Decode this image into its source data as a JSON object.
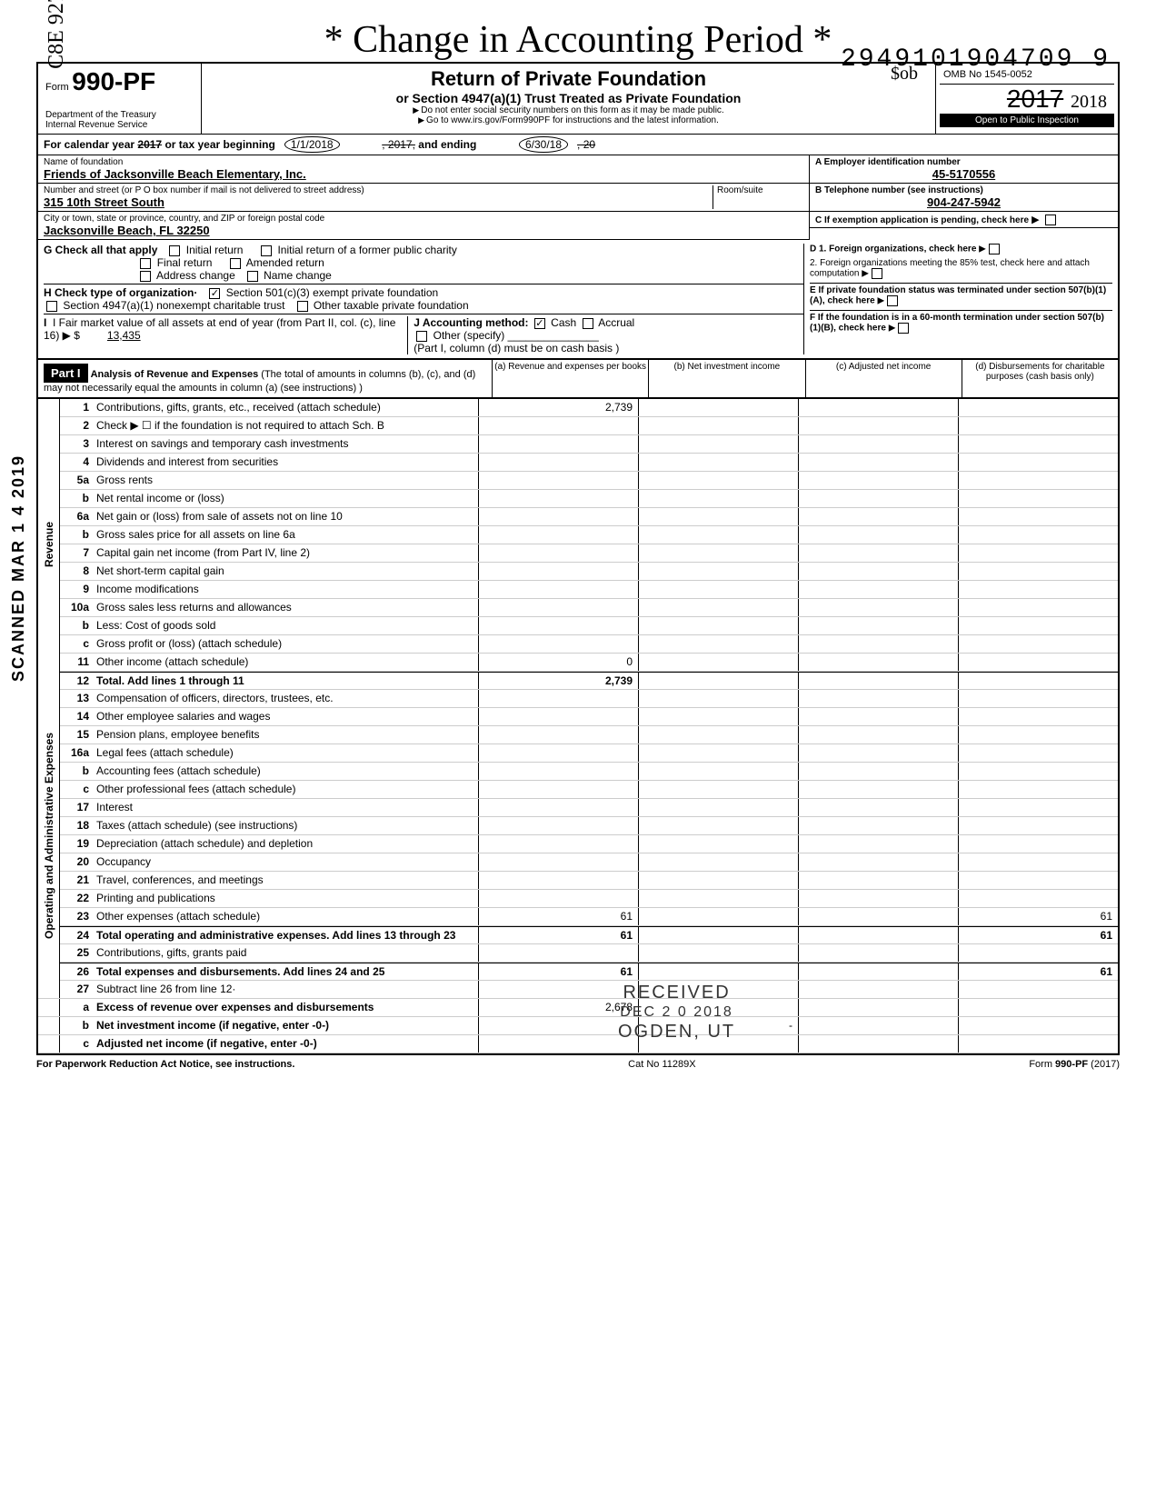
{
  "margin_code": "C8E 927",
  "margin_scanned": "SCANNED MAR 1 4 2019",
  "handwritten_title": "* Change in Accounting Period *",
  "dln": "2949101904709 9",
  "hw_amount": "$ob",
  "header": {
    "form_word": "Form",
    "form_number": "990-PF",
    "dept1": "Department of the Treasury",
    "dept2": "Internal Revenue Service",
    "title": "Return of Private Foundation",
    "subtitle": "or Section 4947(a)(1) Trust Treated as Private Foundation",
    "note1": "Do not enter social security numbers on this form as it may be made public.",
    "note2": "Go to www.irs.gov/Form990PF for instructions and the latest information.",
    "omb": "OMB No 1545-0052",
    "year_strike": "2017",
    "year_hw": "2018",
    "open": "Open to Public Inspection"
  },
  "calyear": {
    "label_pre": "For calendar year",
    "year_strike": "2017",
    "label_mid": "or tax year beginning",
    "begin_date": "1/1/2018",
    "mid2_strike": ", 2017,",
    "mid2": "and ending",
    "end_date": "6/30/18",
    "end_strike": ", 20"
  },
  "info": {
    "name_label": "Name of foundation",
    "name": "Friends of Jacksonville Beach Elementary, Inc.",
    "addr_label": "Number and street (or P O  box number if mail is not delivered to street address)",
    "addr": "315 10th Street South",
    "room_label": "Room/suite",
    "city_label": "City or town, state or province, country, and ZIP or foreign postal code",
    "city": "Jacksonville Beach, FL 32250",
    "ein_label": "A  Employer identification number",
    "ein": "45-5170556",
    "phone_label": "B  Telephone number (see instructions)",
    "phone": "904-247-5942",
    "c_label": "C  If exemption application is pending, check here"
  },
  "checks": {
    "g_label": "G   Check all that apply",
    "g_opts": [
      "Initial return",
      "Initial return of a former public charity",
      "Final return",
      "Amended return",
      "Address change",
      "Name change"
    ],
    "h_label": "H   Check type of organization·",
    "h1": "Section 501(c)(3) exempt private foundation",
    "h2": "Section 4947(a)(1) nonexempt charitable trust",
    "h3": "Other taxable private foundation",
    "i_label": "I    Fair market value of all assets at end of year  (from Part II, col. (c), line 16)",
    "i_amount": "13,435",
    "j_label": "J   Accounting method:",
    "j_cash": "Cash",
    "j_accrual": "Accrual",
    "j_other": "Other (specify)",
    "j_note": "(Part I, column (d) must be on cash basis )",
    "d1": "D  1. Foreign organizations, check here",
    "d2": "2. Foreign organizations meeting the 85% test, check here and attach computation",
    "e": "E  If private foundation status was terminated under section 507(b)(1)(A), check here",
    "f": "F  If the foundation is in a 60-month termination under section 507(b)(1)(B), check here"
  },
  "part1": {
    "label": "Part I",
    "title": "Analysis of Revenue and Expenses",
    "note": "(The total of amounts in columns (b), (c), and (d) may not necessarily equal the amounts in column (a) (see instructions) )",
    "col_a": "(a) Revenue and expenses per books",
    "col_b": "(b) Net investment income",
    "col_c": "(c) Adjusted net income",
    "col_d": "(d) Disbursements for charitable purposes (cash basis only)"
  },
  "revenue_label": "Revenue",
  "expenses_label": "Operating and Administrative Expenses",
  "lines": {
    "1": {
      "desc": "Contributions, gifts, grants, etc., received (attach schedule)",
      "a": "2,739"
    },
    "2": {
      "desc": "Check ▶ ☐ if the foundation is not required to attach Sch. B"
    },
    "3": {
      "desc": "Interest on savings and temporary cash investments"
    },
    "4": {
      "desc": "Dividends and interest from securities"
    },
    "5a": {
      "desc": "Gross rents"
    },
    "5b": {
      "desc": "Net rental income or (loss)"
    },
    "6a": {
      "desc": "Net gain or (loss) from sale of assets not on line 10"
    },
    "6b": {
      "desc": "Gross sales price for all assets on line 6a"
    },
    "7": {
      "desc": "Capital gain net income (from Part IV, line 2)"
    },
    "8": {
      "desc": "Net short-term capital gain"
    },
    "9": {
      "desc": "Income modifications"
    },
    "10a": {
      "desc": "Gross sales less returns and allowances"
    },
    "10b": {
      "desc": "Less: Cost of goods sold"
    },
    "10c": {
      "desc": "Gross profit or (loss) (attach schedule)"
    },
    "11": {
      "desc": "Other income (attach schedule)",
      "a": "0"
    },
    "12": {
      "desc": "Total. Add lines 1 through 11",
      "a": "2,739"
    },
    "13": {
      "desc": "Compensation of officers, directors, trustees, etc."
    },
    "14": {
      "desc": "Other employee salaries and wages"
    },
    "15": {
      "desc": "Pension plans, employee benefits"
    },
    "16a": {
      "desc": "Legal fees (attach schedule)"
    },
    "16b": {
      "desc": "Accounting fees (attach schedule)"
    },
    "16c": {
      "desc": "Other professional fees (attach schedule)"
    },
    "17": {
      "desc": "Interest"
    },
    "18": {
      "desc": "Taxes (attach schedule) (see instructions)"
    },
    "19": {
      "desc": "Depreciation (attach schedule) and depletion"
    },
    "20": {
      "desc": "Occupancy"
    },
    "21": {
      "desc": "Travel, conferences, and meetings"
    },
    "22": {
      "desc": "Printing and publications"
    },
    "23": {
      "desc": "Other expenses (attach schedule)",
      "a": "61",
      "d": "61"
    },
    "24": {
      "desc": "Total operating and administrative expenses. Add lines 13 through 23",
      "a": "61",
      "d": "61"
    },
    "25": {
      "desc": "Contributions, gifts, grants paid"
    },
    "26": {
      "desc": "Total expenses and disbursements. Add lines 24 and 25",
      "a": "61",
      "d": "61"
    },
    "27": {
      "desc": "Subtract line 26 from line 12·"
    },
    "27a": {
      "desc": "Excess of revenue over expenses and disbursements",
      "a": "2,678"
    },
    "27b": {
      "desc": "Net investment income (if negative, enter -0-)",
      "b": "-"
    },
    "27c": {
      "desc": "Adjusted net income (if negative, enter -0-)"
    }
  },
  "stamp": {
    "received": "RECEIVED",
    "date": "DEC 2 0 2018",
    "loc": "OGDEN, UT"
  },
  "footer": {
    "left": "For Paperwork Reduction Act Notice, see instructions.",
    "mid": "Cat No 11289X",
    "right": "Form 990-PF (2017)"
  }
}
